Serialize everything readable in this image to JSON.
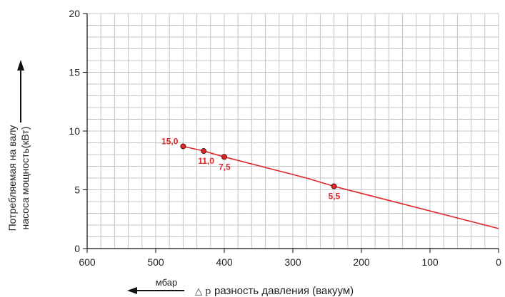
{
  "chart_data": {
    "type": "line",
    "title": "",
    "ylabel_lines": [
      "Потребляемая на валу",
      "насоса мощность(кВт)"
    ],
    "xlabel_symbol": "△ p",
    "xlabel": "разность давления (вакуум)",
    "x_unit": "мбар",
    "xlim": [
      600,
      0
    ],
    "ylim": [
      0,
      20
    ],
    "x_ticks": [
      600,
      500,
      400,
      300,
      200,
      100,
      0
    ],
    "y_ticks": [
      0,
      5,
      10,
      15,
      20
    ],
    "grid": true,
    "series": [
      {
        "color": "#e0282a",
        "points": [
          {
            "x": 460,
            "y": 8.7
          },
          {
            "x": 430,
            "y": 8.3
          },
          {
            "x": 400,
            "y": 7.8
          },
          {
            "x": 280,
            "y": 6.0
          },
          {
            "x": 240,
            "y": 5.3
          },
          {
            "x": 0,
            "y": 1.7
          }
        ]
      }
    ],
    "markers": [
      {
        "x": 460,
        "y": 8.7,
        "label": "15,0",
        "pos": "left"
      },
      {
        "x": 430,
        "y": 8.3,
        "label": "11,0",
        "pos": "below"
      },
      {
        "x": 400,
        "y": 7.8,
        "label": "7,5",
        "pos": "below"
      },
      {
        "x": 240,
        "y": 5.3,
        "label": "5,5",
        "pos": "below"
      }
    ],
    "label_color": "#e0282a"
  }
}
